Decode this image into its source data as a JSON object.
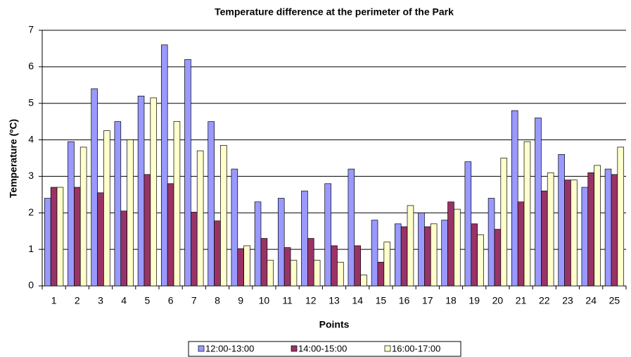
{
  "chart_data": {
    "type": "bar",
    "title": "Temperature difference at the perimeter of the Park",
    "x_label": "Points",
    "y_label": "Temperature (ºC)",
    "categories": [
      "1",
      "2",
      "3",
      "4",
      "5",
      "6",
      "7",
      "8",
      "9",
      "10",
      "11",
      "12",
      "13",
      "14",
      "15",
      "16",
      "17",
      "18",
      "19",
      "20",
      "21",
      "22",
      "23",
      "24",
      "25"
    ],
    "series": [
      {
        "name": "12:00-13:00",
        "color": "#9999ff",
        "values": [
          2.4,
          3.95,
          5.4,
          4.5,
          5.2,
          6.6,
          6.2,
          4.5,
          3.2,
          2.3,
          2.4,
          2.6,
          2.8,
          3.2,
          1.8,
          1.7,
          2.0,
          1.8,
          3.4,
          2.4,
          4.8,
          4.6,
          3.6,
          2.7,
          3.2
        ]
      },
      {
        "name": "14:00-15:00",
        "color": "#993366",
        "values": [
          2.7,
          2.7,
          2.55,
          2.05,
          3.05,
          2.8,
          2.02,
          1.78,
          1.02,
          1.3,
          1.05,
          1.3,
          1.1,
          1.1,
          0.65,
          1.62,
          1.62,
          2.3,
          1.7,
          1.55,
          2.3,
          2.6,
          2.9,
          3.1,
          3.05
        ]
      },
      {
        "name": "16:00-17:00",
        "color": "#ffffcc",
        "values": [
          2.7,
          3.8,
          4.25,
          4.0,
          5.15,
          4.5,
          3.7,
          3.85,
          1.1,
          0.7,
          0.7,
          0.7,
          0.65,
          0.3,
          1.2,
          2.2,
          1.7,
          2.1,
          1.4,
          3.5,
          3.95,
          3.1,
          2.9,
          3.3,
          3.8
        ]
      }
    ],
    "ylim": [
      0,
      7
    ],
    "yticks": [
      0,
      1,
      2,
      3,
      4,
      5,
      6,
      7
    ],
    "grid": true,
    "legend": "bottom"
  }
}
